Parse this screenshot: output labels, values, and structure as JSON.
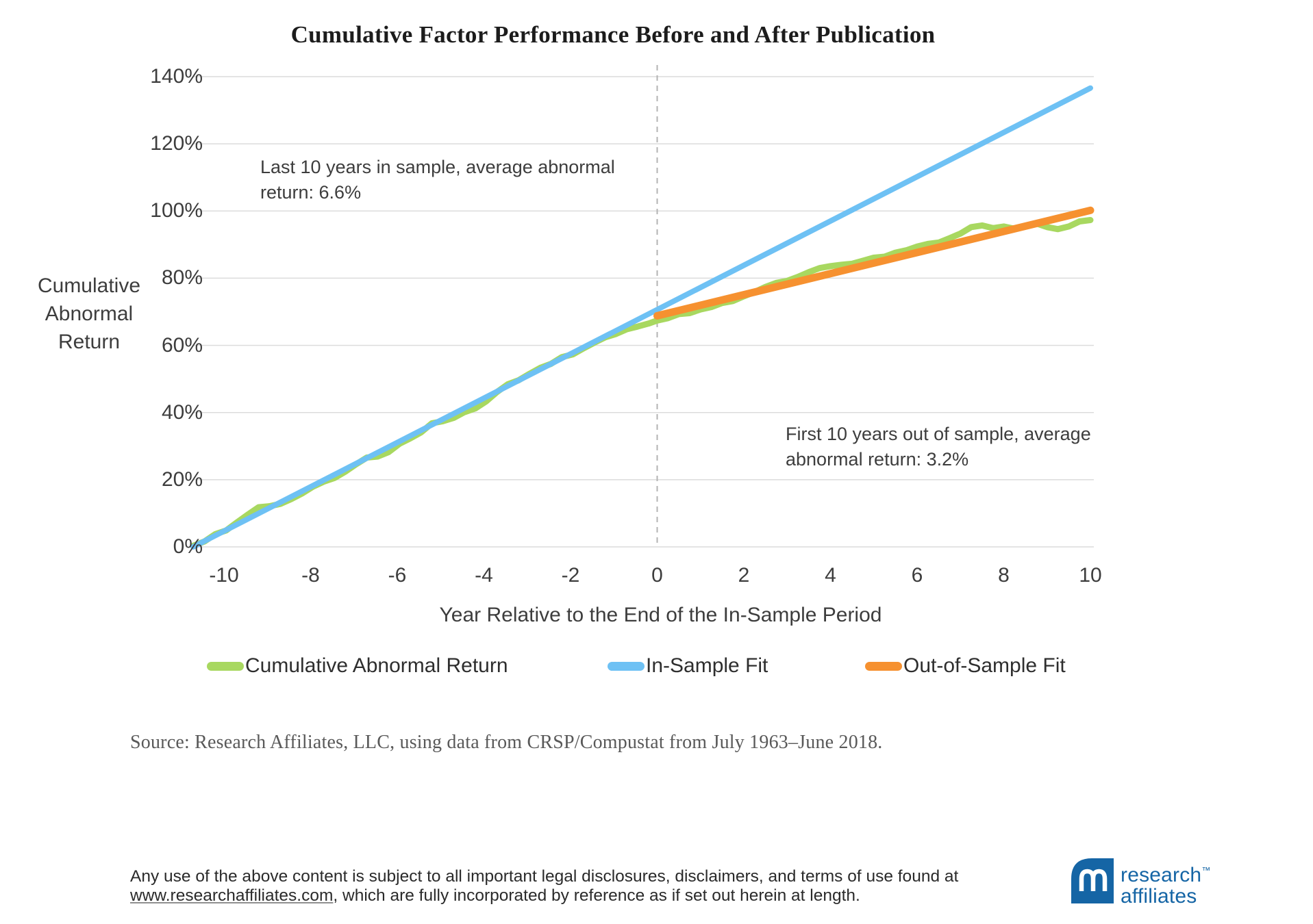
{
  "chart_data": {
    "type": "line",
    "title": "Cumulative Factor Performance Before and After Publication",
    "xlabel": "Year Relative to the End of the In-Sample Period",
    "ylabel": "Cumulative Abnormal Return",
    "ylabel_lines": [
      "Cumulative",
      "Abnormal",
      "Return"
    ],
    "xlim": [
      -10.71,
      10.08
    ],
    "ylim": [
      0,
      140
    ],
    "grid": "horizontal",
    "legend_position": "bottom",
    "publication_line_x": 0,
    "x_ticks": {
      "values": [
        -10,
        -8,
        -6,
        -4,
        -2,
        0,
        2,
        4,
        6,
        8,
        10
      ],
      "labels": [
        "-10",
        "-8",
        "-6",
        "-4",
        "-2",
        "0",
        "2",
        "4",
        "6",
        "8",
        "10"
      ]
    },
    "y_ticks": {
      "values": [
        140,
        120,
        100,
        80,
        60,
        40,
        20,
        0
      ],
      "labels": [
        "140%",
        "120%",
        "100%",
        "80%",
        "60%",
        "40%",
        "20%",
        "0%"
      ]
    },
    "annotations": {
      "in_sample_lines": [
        "Last 10 years in sample, average abnormal",
        "return: 6.6%"
      ],
      "in_sample_value": "6.6%",
      "out_of_sample_lines": [
        "First 10 years out of sample, average",
        "abnormal return: 3.2%"
      ],
      "out_of_sample_value": "3.2%"
    },
    "series": [
      {
        "name": "Cumulative Abnormal Return",
        "color": "#a8d860",
        "x": [
          -10.71,
          -10.45,
          -10.2,
          -9.95,
          -9.7,
          -9.45,
          -9.2,
          -8.95,
          -8.7,
          -8.45,
          -8.2,
          -7.95,
          -7.7,
          -7.45,
          -7.2,
          -6.95,
          -6.7,
          -6.45,
          -6.2,
          -5.95,
          -5.7,
          -5.45,
          -5.2,
          -4.95,
          -4.7,
          -4.45,
          -4.2,
          -3.95,
          -3.7,
          -3.45,
          -3.2,
          -2.95,
          -2.7,
          -2.45,
          -2.2,
          -1.95,
          -1.7,
          -1.45,
          -1.2,
          -0.95,
          -0.7,
          -0.45,
          -0.2,
          0,
          0.25,
          0.5,
          0.75,
          1,
          1.25,
          1.5,
          1.75,
          2,
          2.25,
          2.5,
          2.75,
          3,
          3.25,
          3.5,
          3.75,
          4,
          4.25,
          4.5,
          4.75,
          5,
          5.25,
          5.5,
          5.75,
          6,
          6.25,
          6.5,
          6.75,
          7,
          7.25,
          7.5,
          7.75,
          8,
          8.25,
          8.5,
          8.75,
          9,
          9.25,
          9.5,
          9.75,
          10
        ],
        "y": [
          0.3,
          1.6,
          3.8,
          4.9,
          7.3,
          9.6,
          11.8,
          12.1,
          12.8,
          14.2,
          15.9,
          17.9,
          19.4,
          20.5,
          22.4,
          24.6,
          26.6,
          26.9,
          28.2,
          30.7,
          32.3,
          34.1,
          36.8,
          37.4,
          38.4,
          40.1,
          41.2,
          43.3,
          46.1,
          48.4,
          49.6,
          51.5,
          53.3,
          54.5,
          56.5,
          57.3,
          59.1,
          60.8,
          62.4,
          63.4,
          64.8,
          65.6,
          66.5,
          67.4,
          68.1,
          69.3,
          69.6,
          70.7,
          71.4,
          72.6,
          73.2,
          74.6,
          75.9,
          77.4,
          78.6,
          79.2,
          80.4,
          81.8,
          83.0,
          83.6,
          84.0,
          84.3,
          85.2,
          86.1,
          86.4,
          87.6,
          88.3,
          89.4,
          90.2,
          90.6,
          91.9,
          93.3,
          95.2,
          95.7,
          94.9,
          95.4,
          94.7,
          95.6,
          96.3,
          95.2,
          94.6,
          95.4,
          96.9,
          97.3
        ]
      },
      {
        "name": "In-Sample Fit",
        "color": "#6ec1f4",
        "x": [
          -10.71,
          10
        ],
        "y": [
          0,
          136.6
        ]
      },
      {
        "name": "Out-of-Sample Fit",
        "color": "#f69130",
        "x": [
          0,
          10
        ],
        "y": [
          68.8,
          100.2
        ]
      }
    ]
  },
  "colors": {
    "gridline": "#dcdcdc",
    "publication_line": "#b3b3b3",
    "logo_blue": "#1565a5"
  },
  "footer": {
    "source": "Source: Research Affiliates, LLC, using data from CRSP/Compustat from July 1963–June 2018.",
    "disclaimer": {
      "line1": "Any use of the above content is subject to all important legal disclosures, disclaimers, and terms of use found at",
      "link": "www.researchaffiliates.com",
      "line2_rest": ", which are fully incorporated by reference as if set out herein at length."
    },
    "logo": {
      "line1": "research",
      "line2": "affiliates",
      "tm": "™"
    }
  }
}
